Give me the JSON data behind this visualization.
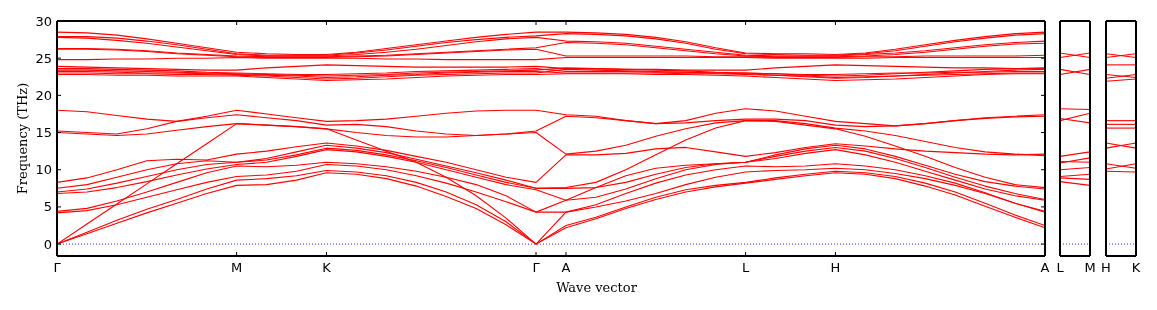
{
  "chart_data": [
    {
      "type": "line",
      "xlabel": "Wave vector",
      "ylabel": "Frequency (THz)",
      "categories": [
        "Γ",
        null,
        null,
        null,
        null,
        null,
        "M",
        null,
        null,
        "K",
        null,
        null,
        null,
        null,
        null,
        null,
        "Γ",
        "A",
        null,
        null,
        null,
        null,
        null,
        "L",
        null,
        null,
        "H",
        null,
        null,
        null,
        null,
        null,
        null,
        "A"
      ],
      "ylim": [
        -1.6,
        30
      ],
      "yticks": [
        0,
        5,
        10,
        15,
        20,
        25,
        30
      ],
      "ref_lines": [
        {
          "axis": "y",
          "value": 0,
          "color": "#0000ff",
          "line_style": "dotted"
        }
      ],
      "series": [
        {
          "color": "#ff0000",
          "values": [
            0,
            1.4,
            2.8,
            4.2,
            5.5,
            6.8,
            7.9,
            8.0,
            8.6,
            9.6,
            9.4,
            8.8,
            7.8,
            6.4,
            4.8,
            2.6,
            0,
            2.2,
            3.4,
            4.8,
            6.0,
            7.0,
            7.7,
            8.2,
            8.7,
            9.2,
            9.6,
            9.4,
            8.8,
            7.8,
            6.6,
            5.1,
            3.6,
            2.2
          ]
        },
        {
          "color": "#ff0000",
          "values": [
            0,
            1.6,
            3.2,
            4.7,
            6.0,
            7.4,
            8.6,
            8.8,
            9.2,
            9.9,
            9.7,
            9.2,
            8.3,
            7.0,
            5.3,
            3.0,
            0,
            2.5,
            3.6,
            5.0,
            6.3,
            7.3,
            7.9,
            8.3,
            8.9,
            9.4,
            9.8,
            9.6,
            9.1,
            8.2,
            7.0,
            5.5,
            3.9,
            2.5
          ]
        },
        {
          "color": "#ff0000",
          "values": [
            0,
            2.7,
            5.4,
            8.1,
            10.8,
            13.5,
            16.2,
            16.0,
            15.8,
            15.5,
            14.0,
            12.5,
            11.0,
            9.0,
            6.5,
            3.5,
            0,
            4.3,
            5.0,
            5.8,
            6.8,
            8.0,
            9.0,
            9.7,
            9.9,
            10.0,
            10.2,
            10.0,
            9.5,
            8.8,
            7.9,
            6.8,
            5.5,
            4.3
          ]
        },
        {
          "color": "#ff0000",
          "values": [
            4.2,
            4.5,
            5.3,
            6.3,
            7.3,
            8.3,
            9.1,
            9.3,
            9.8,
            10.7,
            10.5,
            10.0,
            9.2,
            8.2,
            7.0,
            5.7,
            4.3,
            4.3,
            5.3,
            6.8,
            8.2,
            9.3,
            10.0,
            10.5,
            10.4,
            10.5,
            10.8,
            10.5,
            10.0,
            9.2,
            8.2,
            6.9,
            5.5,
            4.4
          ]
        },
        {
          "color": "#ff0000",
          "values": [
            4.4,
            4.8,
            5.8,
            7.0,
            8.3,
            9.6,
            10.5,
            10.4,
            10.6,
            11.0,
            10.8,
            10.4,
            9.8,
            9.0,
            8.0,
            6.5,
            4.3,
            5.9,
            6.3,
            7.4,
            8.8,
            10.0,
            10.7,
            11.0,
            11.5,
            12.2,
            12.7,
            12.0,
            11.0,
            9.8,
            8.6,
            7.4,
            6.5,
            5.9
          ]
        },
        {
          "color": "#ff0000",
          "values": [
            6.8,
            7.0,
            7.6,
            8.4,
            9.3,
            10.1,
            10.7,
            11.0,
            11.8,
            12.7,
            12.4,
            11.8,
            11.0,
            10.0,
            9.0,
            8.0,
            7.3,
            5.9,
            7.6,
            9.2,
            10.2,
            10.6,
            10.8,
            11.0,
            11.8,
            12.5,
            13.0,
            12.5,
            11.5,
            10.3,
            9.0,
            7.8,
            6.8,
            6.0
          ]
        },
        {
          "color": "#ff0000",
          "values": [
            7.0,
            7.4,
            8.2,
            9.1,
            10.0,
            10.7,
            11.0,
            11.3,
            12.0,
            12.9,
            12.6,
            12.0,
            11.2,
            10.3,
            9.3,
            8.3,
            7.5,
            7.5,
            7.6,
            8.3,
            9.4,
            10.3,
            10.8,
            11.0,
            12.0,
            12.8,
            13.3,
            12.8,
            11.8,
            10.6,
            9.4,
            8.4,
            7.8,
            7.4
          ]
        },
        {
          "color": "#ff0000",
          "values": [
            7.5,
            8.0,
            9.0,
            10.0,
            10.8,
            11.2,
            11.0,
            11.5,
            12.4,
            13.3,
            12.9,
            12.3,
            11.4,
            10.5,
            9.6,
            8.6,
            7.5,
            7.6,
            8.3,
            10.0,
            12.0,
            14.0,
            15.6,
            16.6,
            16.5,
            16.0,
            15.5,
            14.5,
            13.2,
            11.8,
            10.3,
            9.0,
            8.0,
            7.6
          ]
        },
        {
          "color": "#ff0000",
          "values": [
            8.3,
            8.9,
            10.0,
            11.2,
            11.4,
            11.3,
            12.1,
            12.5,
            13.1,
            13.6,
            13.2,
            12.6,
            11.8,
            11.0,
            10.0,
            9.0,
            8.3,
            12.0,
            12.0,
            12.2,
            12.8,
            13.0,
            12.4,
            11.8,
            12.3,
            13.0,
            13.5,
            13.2,
            12.8,
            12.5,
            12.3,
            12.1,
            12.0,
            12.1
          ]
        },
        {
          "color": "#ff0000",
          "values": [
            15.0,
            14.8,
            14.6,
            14.8,
            15.3,
            15.8,
            16.2,
            16.0,
            15.8,
            15.5,
            15.0,
            14.6,
            14.4,
            14.4,
            14.6,
            14.8,
            15.0,
            12.1,
            12.5,
            13.3,
            14.5,
            15.5,
            16.3,
            16.6,
            16.6,
            16.2,
            15.6,
            15.2,
            14.6,
            13.8,
            13.0,
            12.4,
            12.1,
            11.9
          ]
        },
        {
          "color": "#ff0000",
          "values": [
            15.2,
            15.0,
            14.8,
            15.5,
            16.5,
            17.0,
            17.4,
            17.0,
            16.6,
            16.0,
            16.1,
            15.8,
            15.2,
            14.8,
            14.6,
            14.8,
            15.2,
            17.2,
            17.0,
            16.6,
            16.2,
            16.3,
            16.6,
            16.8,
            16.8,
            16.6,
            16.0,
            15.8,
            15.9,
            16.2,
            16.6,
            16.9,
            17.1,
            17.2
          ]
        },
        {
          "color": "#ff0000",
          "values": [
            18.0,
            17.8,
            17.3,
            16.8,
            16.5,
            17.2,
            18.0,
            17.5,
            17.0,
            16.5,
            16.6,
            16.8,
            17.2,
            17.6,
            17.9,
            18.0,
            18.0,
            17.4,
            17.2,
            16.6,
            16.2,
            16.6,
            17.6,
            18.2,
            17.9,
            17.2,
            16.5,
            16.2,
            15.9,
            16.2,
            16.6,
            17.0,
            17.2,
            17.4
          ]
        },
        {
          "color": "#ff0000",
          "values": [
            22.8,
            22.8,
            22.7,
            22.7,
            22.6,
            22.6,
            22.6,
            22.4,
            22.2,
            22.0,
            22.1,
            22.2,
            22.4,
            22.6,
            22.7,
            22.8,
            22.8,
            22.9,
            22.9,
            22.9,
            22.8,
            22.8,
            22.7,
            22.6,
            22.4,
            22.2,
            22.0,
            22.1,
            22.2,
            22.4,
            22.6,
            22.8,
            22.9,
            22.9
          ]
        },
        {
          "color": "#ff0000",
          "values": [
            23.0,
            23.0,
            22.9,
            22.9,
            22.8,
            22.8,
            22.7,
            22.6,
            22.4,
            22.2,
            22.3,
            22.5,
            22.7,
            22.8,
            22.9,
            23.0,
            23.0,
            23.5,
            23.4,
            23.3,
            23.2,
            23.1,
            23.0,
            22.9,
            22.7,
            22.5,
            22.3,
            22.4,
            22.6,
            22.8,
            23.0,
            23.2,
            23.4,
            23.5
          ]
        },
        {
          "color": "#ff0000",
          "values": [
            23.2,
            23.2,
            23.1,
            23.0,
            23.0,
            22.9,
            22.8,
            22.7,
            22.6,
            22.4,
            22.5,
            22.7,
            22.8,
            23.0,
            23.1,
            23.2,
            23.2,
            23.0,
            23.0,
            23.0,
            23.0,
            22.9,
            22.9,
            22.8,
            22.7,
            22.6,
            22.4,
            22.5,
            22.6,
            22.7,
            22.8,
            22.9,
            23.0,
            23.0
          ]
        },
        {
          "color": "#ff0000",
          "values": [
            23.4,
            23.4,
            23.3,
            23.2,
            23.1,
            23.0,
            22.9,
            22.8,
            22.7,
            22.6,
            22.7,
            22.8,
            23.0,
            23.1,
            23.2,
            23.3,
            23.4,
            23.7,
            23.6,
            23.5,
            23.4,
            23.3,
            23.1,
            23.0,
            22.9,
            22.7,
            22.6,
            22.7,
            22.9,
            23.1,
            23.3,
            23.5,
            23.6,
            23.7
          ]
        },
        {
          "color": "#ff0000",
          "values": [
            23.6,
            23.6,
            23.5,
            23.4,
            23.3,
            23.1,
            23.0,
            22.9,
            22.8,
            22.8,
            22.9,
            23.0,
            23.2,
            23.3,
            23.4,
            23.5,
            23.6,
            23.2,
            23.2,
            23.2,
            23.1,
            23.1,
            23.0,
            23.0,
            22.9,
            22.8,
            22.8,
            22.9,
            23.0,
            23.0,
            23.1,
            23.1,
            23.2,
            23.2
          ]
        },
        {
          "color": "#ff0000",
          "values": [
            23.9,
            23.8,
            23.7,
            23.6,
            23.5,
            23.4,
            23.4,
            23.7,
            23.9,
            24.1,
            24.0,
            23.9,
            23.8,
            23.8,
            23.8,
            23.8,
            23.9,
            23.6,
            23.6,
            23.5,
            23.5,
            23.4,
            23.4,
            23.4,
            23.7,
            23.9,
            24.1,
            24.0,
            23.9,
            23.8,
            23.7,
            23.7,
            23.6,
            23.6
          ]
        },
        {
          "color": "#ff0000",
          "values": [
            24.8,
            24.8,
            24.9,
            24.9,
            25.0,
            25.0,
            25.1,
            25.0,
            25.0,
            25.0,
            25.0,
            24.9,
            24.9,
            24.8,
            24.8,
            24.8,
            24.8,
            25.1,
            25.1,
            25.1,
            25.1,
            25.1,
            25.1,
            25.1,
            25.0,
            25.0,
            25.0,
            25.0,
            25.1,
            25.1,
            25.1,
            25.1,
            25.1,
            25.1
          ]
        },
        {
          "color": "#ff0000",
          "values": [
            26.2,
            26.2,
            26.1,
            25.9,
            25.6,
            25.4,
            25.2,
            25.1,
            25.1,
            25.1,
            25.2,
            25.3,
            25.5,
            25.7,
            25.9,
            26.1,
            26.2,
            25.3,
            25.3,
            25.3,
            25.3,
            25.3,
            25.2,
            25.2,
            25.1,
            25.1,
            25.1,
            25.2,
            25.2,
            25.3,
            25.3,
            25.3,
            25.3,
            25.4
          ]
        },
        {
          "color": "#ff0000",
          "values": [
            26.3,
            26.3,
            26.2,
            26.0,
            25.7,
            25.5,
            25.3,
            25.2,
            25.2,
            25.2,
            25.3,
            25.4,
            25.6,
            25.8,
            26.0,
            26.2,
            26.4,
            27.1,
            27.0,
            26.8,
            26.4,
            26.0,
            25.6,
            25.3,
            25.2,
            25.2,
            25.2,
            25.3,
            25.5,
            25.8,
            26.2,
            26.6,
            26.9,
            27.0
          ]
        },
        {
          "color": "#ff0000",
          "values": [
            27.8,
            27.7,
            27.4,
            27.0,
            26.5,
            26.0,
            25.5,
            25.3,
            25.3,
            25.3,
            25.5,
            25.8,
            26.2,
            26.7,
            27.2,
            27.6,
            27.8,
            27.3,
            27.2,
            27.0,
            26.6,
            26.2,
            25.8,
            25.4,
            25.3,
            25.3,
            25.3,
            25.5,
            25.7,
            26.0,
            26.4,
            26.8,
            27.1,
            27.3
          ]
        },
        {
          "color": "#ff0000",
          "values": [
            27.9,
            27.9,
            27.7,
            27.3,
            26.8,
            26.2,
            25.6,
            25.4,
            25.4,
            25.4,
            25.7,
            26.1,
            26.6,
            27.1,
            27.5,
            27.8,
            28.0,
            28.3,
            28.2,
            28.0,
            27.6,
            27.0,
            26.2,
            25.6,
            25.5,
            25.4,
            25.4,
            25.6,
            26.0,
            26.6,
            27.2,
            27.7,
            28.1,
            28.3
          ]
        },
        {
          "color": "#ff0000",
          "values": [
            28.5,
            28.4,
            28.1,
            27.6,
            27.0,
            26.4,
            25.8,
            25.6,
            25.5,
            25.5,
            25.8,
            26.3,
            26.8,
            27.3,
            27.8,
            28.2,
            28.5,
            28.5,
            28.4,
            28.2,
            27.8,
            27.2,
            26.4,
            25.7,
            25.6,
            25.6,
            25.5,
            25.7,
            26.2,
            26.8,
            27.4,
            27.9,
            28.3,
            28.5
          ]
        }
      ]
    },
    {
      "type": "line",
      "tick_labels": "x",
      "categories": [
        "L",
        "M"
      ],
      "ylim": [
        -1.6,
        30
      ],
      "yticks": [
        0,
        5,
        10,
        15,
        20,
        25,
        30
      ],
      "ref_lines": [
        {
          "axis": "y",
          "value": 0,
          "color": "#0000ff",
          "line_style": "dotted"
        }
      ],
      "series": [
        {
          "color": "#ff0000",
          "values": [
            8.4,
            7.9
          ]
        },
        {
          "color": "#ff0000",
          "values": [
            8.9,
            8.7
          ]
        },
        {
          "color": "#ff0000",
          "values": [
            9.1,
            9.4
          ]
        },
        {
          "color": "#ff0000",
          "values": [
            10.0,
            10.3
          ]
        },
        {
          "color": "#ff0000",
          "values": [
            10.9,
            11.6
          ]
        },
        {
          "color": "#ff0000",
          "values": [
            11.1,
            11.0
          ]
        },
        {
          "color": "#ff0000",
          "values": [
            11.8,
            12.4
          ]
        },
        {
          "color": "#ff0000",
          "values": [
            16.6,
            17.6
          ]
        },
        {
          "color": "#ff0000",
          "values": [
            16.9,
            16.3
          ]
        },
        {
          "color": "#ff0000",
          "values": [
            18.2,
            18.1
          ]
        },
        {
          "color": "#ff0000",
          "values": [
            22.8,
            23.5
          ]
        },
        {
          "color": "#ff0000",
          "values": [
            23.5,
            22.8
          ]
        },
        {
          "color": "#ff0000",
          "values": [
            25.1,
            25.7
          ]
        },
        {
          "color": "#ff0000",
          "values": [
            25.7,
            25.1
          ]
        }
      ]
    },
    {
      "type": "line",
      "tick_labels": "x",
      "categories": [
        "H",
        "K"
      ],
      "ylim": [
        -1.6,
        30
      ],
      "yticks": [
        0,
        5,
        10,
        15,
        20,
        25,
        30
      ],
      "ref_lines": [
        {
          "axis": "y",
          "value": 0,
          "color": "#0000ff",
          "line_style": "dotted"
        }
      ],
      "series": [
        {
          "color": "#ff0000",
          "values": [
            9.8,
            9.7
          ]
        },
        {
          "color": "#ff0000",
          "values": [
            10.1,
            10.8
          ]
        },
        {
          "color": "#ff0000",
          "values": [
            10.8,
            10.2
          ]
        },
        {
          "color": "#ff0000",
          "values": [
            12.9,
            13.6
          ]
        },
        {
          "color": "#ff0000",
          "values": [
            13.6,
            12.9
          ]
        },
        {
          "color": "#ff0000",
          "values": [
            15.6,
            15.6
          ]
        },
        {
          "color": "#ff0000",
          "values": [
            16.1,
            16.1
          ]
        },
        {
          "color": "#ff0000",
          "values": [
            16.6,
            16.6
          ]
        },
        {
          "color": "#ff0000",
          "values": [
            21.9,
            22.2
          ]
        },
        {
          "color": "#ff0000",
          "values": [
            22.3,
            22.8
          ]
        },
        {
          "color": "#ff0000",
          "values": [
            22.8,
            22.4
          ]
        },
        {
          "color": "#ff0000",
          "values": [
            24.1,
            24.1
          ]
        },
        {
          "color": "#ff0000",
          "values": [
            25.1,
            25.6
          ]
        },
        {
          "color": "#ff0000",
          "values": [
            25.6,
            25.1
          ]
        }
      ]
    }
  ]
}
